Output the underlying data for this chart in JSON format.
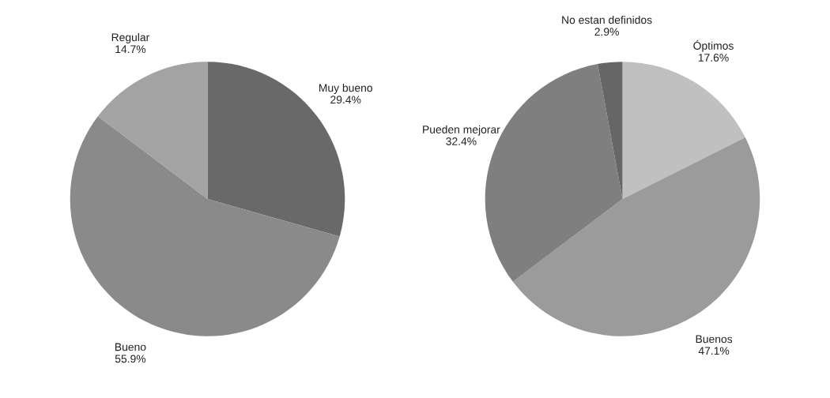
{
  "chart_data": [
    {
      "type": "pie",
      "categories": [
        "Muy bueno",
        "Bueno",
        "Regular"
      ],
      "values": [
        29.4,
        55.9,
        14.7
      ],
      "value_labels": [
        "29.4%",
        "55.9%",
        "14.7%"
      ],
      "colors": [
        "#696969",
        "#8a8a8a",
        "#a3a3a3"
      ]
    },
    {
      "type": "pie",
      "categories": [
        "Óptimos",
        "Buenos",
        "Pueden mejorar",
        "No estan definidos"
      ],
      "values": [
        17.6,
        47.1,
        32.4,
        2.9
      ],
      "value_labels": [
        "17.6%",
        "47.1%",
        "32.4%",
        "2.9%"
      ],
      "colors": [
        "#c0c0c0",
        "#9b9b9b",
        "#7f7f7f",
        "#666666"
      ]
    }
  ]
}
